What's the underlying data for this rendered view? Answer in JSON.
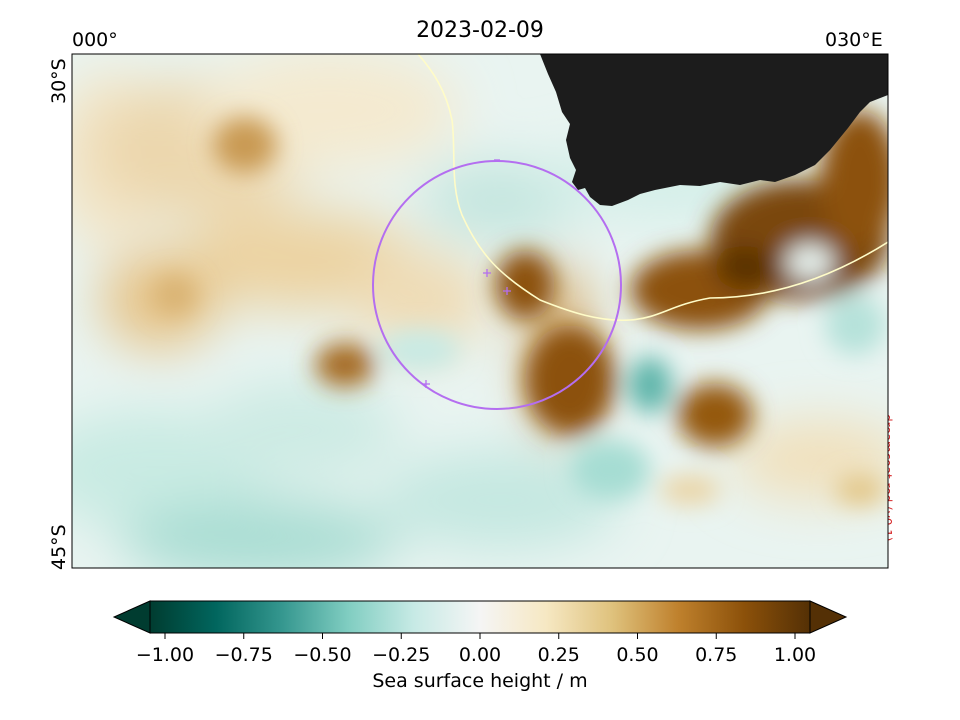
{
  "title": "2023-02-09",
  "axes": {
    "lon_left": "000°",
    "lon_right": "030°E",
    "lat_top": "30°S",
    "lat_bottom": "45°S"
  },
  "credit": "dreamcoat red (v0.1)",
  "colorbar": {
    "label": "Sea surface height / m",
    "min": -1.0,
    "max": 1.0,
    "extend": "both",
    "colormap": [
      "#003c30",
      "#01665e",
      "#35978f",
      "#80cdc1",
      "#c7eae5",
      "#f5f5f5",
      "#f6e8c3",
      "#dfc27d",
      "#bf812d",
      "#8c510a",
      "#543005"
    ],
    "ticks": [
      {
        "value": -1.0,
        "label": "−1.00"
      },
      {
        "value": -0.75,
        "label": "−0.75"
      },
      {
        "value": -0.5,
        "label": "−0.50"
      },
      {
        "value": -0.25,
        "label": "−0.25"
      },
      {
        "value": 0.0,
        "label": "0.00"
      },
      {
        "value": 0.25,
        "label": "0.25"
      },
      {
        "value": 0.5,
        "label": "0.50"
      },
      {
        "value": 0.75,
        "label": "0.75"
      },
      {
        "value": 1.0,
        "label": "1.00"
      }
    ]
  },
  "map": {
    "extent": {
      "lon": [
        0,
        30
      ],
      "lat": [
        -45,
        -30
      ]
    },
    "land_color": "#1c1c1c",
    "contour_color": "#fffcc8",
    "circle_color": "#b46ef0",
    "track_markers": 4
  }
}
